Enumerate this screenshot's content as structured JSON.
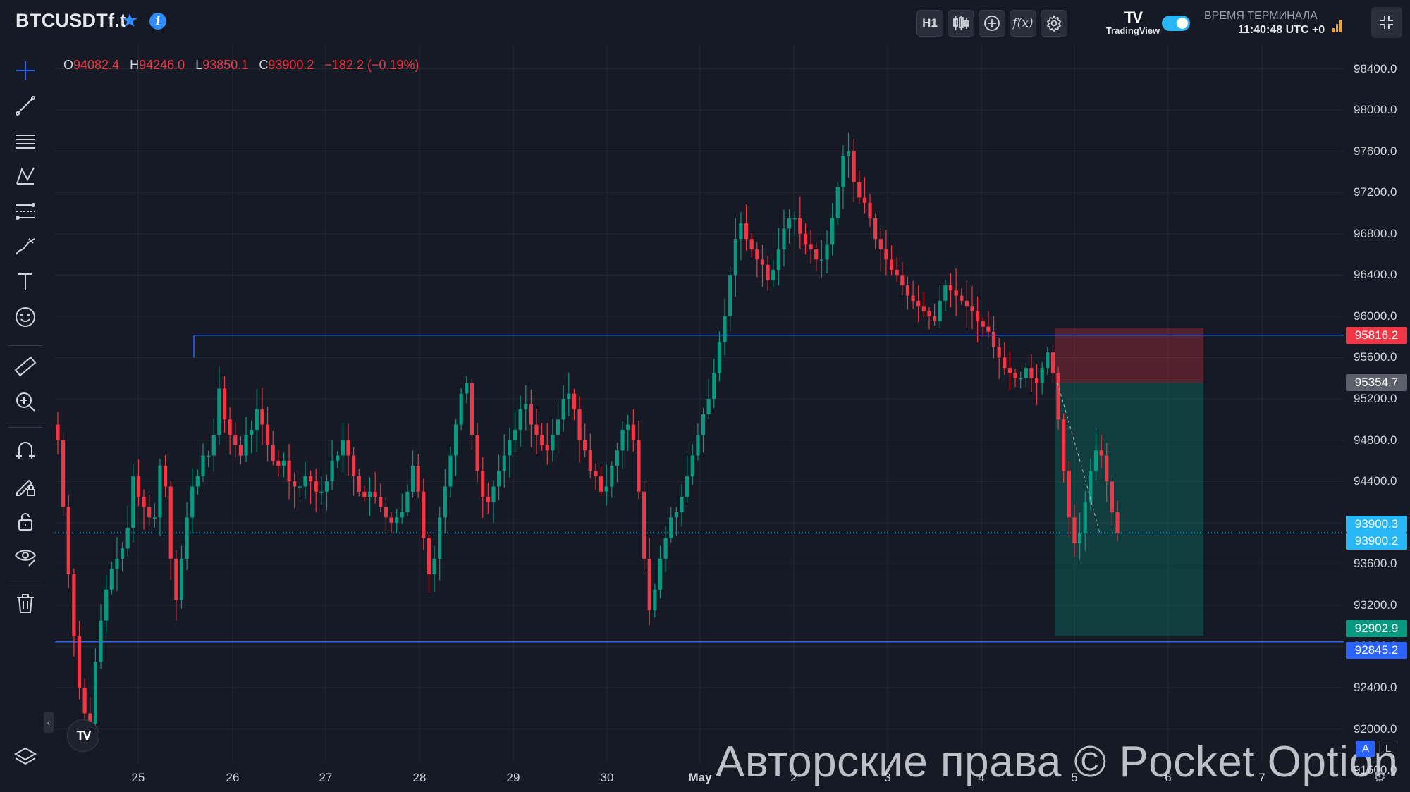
{
  "header": {
    "symbol": "BTCUSDTf.t",
    "star_icon": "star-icon",
    "info_icon": "info-icon",
    "timeframe": "H1",
    "tradingview_label": "TradingView",
    "terminal_label": "ВРЕМЯ ТЕРМИНАЛА",
    "terminal_time": "11:40:48 UTC +0",
    "toggle_on": true
  },
  "ohlc": {
    "o_label": "O",
    "o": "94082.4",
    "h_label": "H",
    "h": "94246.0",
    "l_label": "L",
    "l": "93850.1",
    "c_label": "C",
    "c": "93900.2",
    "change": "−182.2 (−0.19%)"
  },
  "sidebar_tools": [
    "crosshair-icon",
    "trend-line-icon",
    "horizontal-lines-icon",
    "pattern-icon",
    "fib-icon",
    "brush-icon",
    "text-icon",
    "emoji-icon",
    "ruler-icon",
    "zoom-in-icon",
    "magnet-icon",
    "lock-drawing-icon",
    "unlock-icon",
    "eye-icon",
    "trash-icon",
    "layers-icon"
  ],
  "yaxis": {
    "ticks": [
      "98400.0",
      "98000.0",
      "97600.0",
      "97200.0",
      "96800.0",
      "96400.0",
      "96000.0",
      "95600.0",
      "95200.0",
      "94800.0",
      "94400.0",
      "94000.0",
      "93600.0",
      "93200.0",
      "92800.0",
      "92400.0",
      "92000.0",
      "91600.0"
    ],
    "labels": [
      {
        "text": "95816.2",
        "color": "#f23645"
      },
      {
        "text": "95354.7",
        "color": "#5d606b"
      },
      {
        "text": "93900.3",
        "color": "#29b6f6"
      },
      {
        "text": "93900.2",
        "color": "#29b6f6"
      },
      {
        "text": "92902.9",
        "color": "#089981"
      },
      {
        "text": "92845.2",
        "color": "#2962ff"
      }
    ],
    "auto": "A",
    "log": "L"
  },
  "xaxis": {
    "ticks": [
      "25",
      "26",
      "27",
      "28",
      "29",
      "30",
      "May",
      "2",
      "3",
      "4",
      "5",
      "6",
      "7"
    ]
  },
  "chart_data": {
    "type": "candlestick",
    "ylim": [
      91300,
      98600
    ],
    "close": [
      94800,
      94150,
      93500,
      92900,
      92400,
      92150,
      92050,
      92650,
      93050,
      93350,
      93550,
      93650,
      93750,
      93950,
      94450,
      94250,
      94150,
      94050,
      94050,
      94550,
      94350,
      93650,
      93250,
      93650,
      94050,
      94350,
      94450,
      94650,
      94650,
      94850,
      95300,
      95000,
      94850,
      94750,
      94650,
      94850,
      94900,
      95100,
      94950,
      94750,
      94600,
      94550,
      94600,
      94400,
      94350,
      94350,
      94450,
      94400,
      94300,
      94300,
      94400,
      94600,
      94650,
      94800,
      94650,
      94450,
      94300,
      94250,
      94300,
      94250,
      94150,
      94050,
      94000,
      94050,
      94100,
      94300,
      94550,
      94300,
      93850,
      93500,
      93650,
      94050,
      94350,
      94650,
      94950,
      95250,
      95350,
      94850,
      94500,
      94250,
      94200,
      94350,
      94500,
      94650,
      94800,
      94900,
      95100,
      95150,
      94950,
      94850,
      94750,
      94700,
      94850,
      95000,
      95200,
      95250,
      95100,
      94800,
      94700,
      94500,
      94450,
      94300,
      94350,
      94550,
      94700,
      94900,
      94950,
      94800,
      94300,
      93650,
      93150,
      93350,
      93650,
      93850,
      94050,
      94100,
      94250,
      94450,
      94650,
      94850,
      95050,
      95200,
      95450,
      95750,
      96000,
      96400,
      96750,
      96900,
      96750,
      96650,
      96550,
      96500,
      96350,
      96450,
      96650,
      96850,
      96950,
      96950,
      96800,
      96700,
      96650,
      96550,
      96550,
      96700,
      96950,
      97250,
      97550,
      97600,
      97300,
      97150,
      97100,
      96950,
      96750,
      96650,
      96550,
      96450,
      96400,
      96300,
      96200,
      96150,
      96100,
      96050,
      96000,
      95950,
      96150,
      96300,
      96250,
      96200,
      96150,
      96100,
      96050,
      95950,
      95900,
      95850,
      95700,
      95600,
      95500,
      95450,
      95400,
      95400,
      95500,
      95400,
      95350,
      95500,
      95650,
      95450,
      95000,
      94500,
      94050,
      93800,
      93900,
      94200,
      94500,
      94700,
      94650,
      94400,
      94100,
      93900
    ]
  }
}
